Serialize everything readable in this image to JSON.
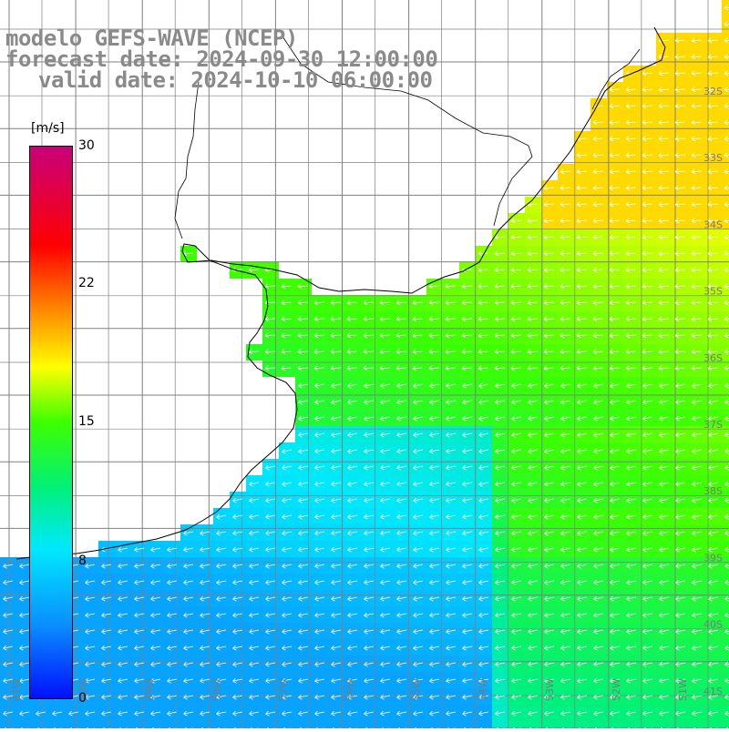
{
  "title": {
    "line1": "modelo GEFS-WAVE (NCEP)",
    "line2": "forecast date: 2024-09-30 12:00:00",
    "line3": "valid date: 2024-10-10 06:00:00"
  },
  "colorbar": {
    "unit": "[m/s]",
    "ticks": [
      {
        "value": 30,
        "label": "30"
      },
      {
        "value": 22,
        "label": "22"
      },
      {
        "value": 15,
        "label": "15"
      },
      {
        "value": 8,
        "label": "8"
      },
      {
        "value": 0,
        "label": "0"
      }
    ],
    "min": 0,
    "max": 30
  },
  "lat_labels": [
    "32S",
    "33S",
    "34S",
    "35S",
    "36S",
    "37S",
    "38S",
    "39S",
    "40S",
    "41S"
  ],
  "lon_labels": [
    "61W",
    "60W",
    "59W",
    "58W",
    "57W",
    "56W",
    "55W",
    "54W",
    "53W",
    "52W",
    "51W"
  ],
  "chart_data": {
    "type": "heatmap",
    "variable": "wind speed",
    "unit": "m/s",
    "wind_direction": "from east / north-east",
    "lat_range": [
      "31S",
      "41.5S"
    ],
    "lon_range": [
      "61W",
      "50.5W"
    ]
  },
  "colors": {
    "land": "#ffffff",
    "grid": "#808080",
    "coast": "#000000",
    "arrows": "#ffffff",
    "title": "#8a8a8a"
  }
}
